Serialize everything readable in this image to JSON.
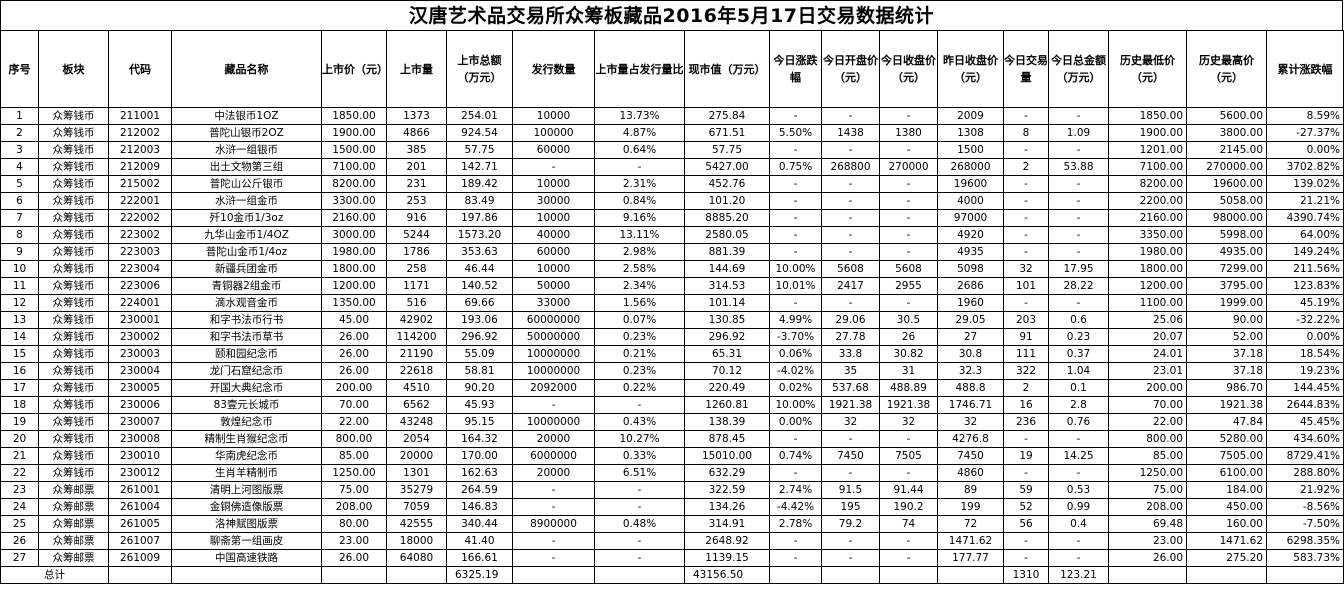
{
  "title": "汉唐艺术品交易所众筹板藏品2016年5月17日交易数据统计",
  "headers": [
    "序号",
    "板块",
    "代码",
    "藏品名称",
    "上市价（元）",
    "上市量",
    "上市总额（万元）",
    "发行数量",
    "上市量占发行量比",
    "现市值（万元）",
    "今日涨跌幅",
    "今日开盘价（元）",
    "今日收盘价（元）",
    "昨日收盘价（元）",
    "今日交易量",
    "今日总金额（万元）",
    "历史最低价（元）",
    "历史最高价（元）",
    "累计涨跌幅"
  ],
  "rows": [
    [
      "1",
      "众筹钱币",
      "211001",
      "中法银币1OZ",
      "1850.00",
      "1373",
      "254.01",
      "10000",
      "13.73%",
      "275.84",
      "-",
      "-",
      "-",
      "2009",
      "-",
      "-",
      "1850.00",
      "5600.00",
      "8.59%"
    ],
    [
      "2",
      "众筹钱币",
      "212002",
      "普陀山银币2OZ",
      "1900.00",
      "4866",
      "924.54",
      "100000",
      "4.87%",
      "671.51",
      "5.50%",
      "1438",
      "1380",
      "1308",
      "8",
      "1.09",
      "1900.00",
      "3800.00",
      "-27.37%"
    ],
    [
      "3",
      "众筹钱币",
      "212003",
      "水浒一组银币",
      "1500.00",
      "385",
      "57.75",
      "60000",
      "0.64%",
      "57.75",
      "-",
      "-",
      "-",
      "1500",
      "-",
      "-",
      "1201.00",
      "2145.00",
      "0.00%"
    ],
    [
      "4",
      "众筹钱币",
      "212009",
      "出土文物第三组",
      "7100.00",
      "201",
      "142.71",
      "-",
      "-",
      "5427.00",
      "0.75%",
      "268800",
      "270000",
      "268000",
      "2",
      "53.88",
      "7100.00",
      "270000.00",
      "3702.82%"
    ],
    [
      "5",
      "众筹钱币",
      "215002",
      "普陀山公斤银币",
      "8200.00",
      "231",
      "189.42",
      "10000",
      "2.31%",
      "452.76",
      "-",
      "-",
      "-",
      "19600",
      "-",
      "-",
      "8200.00",
      "19600.00",
      "139.02%"
    ],
    [
      "6",
      "众筹钱币",
      "222001",
      "水浒一组金币",
      "3300.00",
      "253",
      "83.49",
      "30000",
      "0.84%",
      "101.20",
      "-",
      "-",
      "-",
      "4000",
      "-",
      "-",
      "2200.00",
      "5058.00",
      "21.21%"
    ],
    [
      "7",
      "众筹钱币",
      "222002",
      "歼10金币1/3oz",
      "2160.00",
      "916",
      "197.86",
      "10000",
      "9.16%",
      "8885.20",
      "-",
      "-",
      "-",
      "97000",
      "-",
      "-",
      "2160.00",
      "98000.00",
      "4390.74%"
    ],
    [
      "8",
      "众筹钱币",
      "223002",
      "九华山金币1/4OZ",
      "3000.00",
      "5244",
      "1573.20",
      "40000",
      "13.11%",
      "2580.05",
      "-",
      "-",
      "-",
      "4920",
      "-",
      "-",
      "3350.00",
      "5998.00",
      "64.00%"
    ],
    [
      "9",
      "众筹钱币",
      "223003",
      "普陀山金币1/4oz",
      "1980.00",
      "1786",
      "353.63",
      "60000",
      "2.98%",
      "881.39",
      "-",
      "-",
      "-",
      "4935",
      "-",
      "-",
      "1980.00",
      "4935.00",
      "149.24%"
    ],
    [
      "10",
      "众筹钱币",
      "223004",
      "新疆兵团金币",
      "1800.00",
      "258",
      "46.44",
      "10000",
      "2.58%",
      "144.69",
      "10.00%",
      "5608",
      "5608",
      "5098",
      "32",
      "17.95",
      "1800.00",
      "7299.00",
      "211.56%"
    ],
    [
      "11",
      "众筹钱币",
      "223006",
      "青铜器2组金币",
      "1200.00",
      "1171",
      "140.52",
      "50000",
      "2.34%",
      "314.53",
      "10.01%",
      "2417",
      "2955",
      "2686",
      "101",
      "28.22",
      "1200.00",
      "3795.00",
      "123.83%"
    ],
    [
      "12",
      "众筹钱币",
      "224001",
      "滴水观音金币",
      "1350.00",
      "516",
      "69.66",
      "33000",
      "1.56%",
      "101.14",
      "-",
      "-",
      "-",
      "1960",
      "-",
      "-",
      "1100.00",
      "1999.00",
      "45.19%"
    ],
    [
      "13",
      "众筹钱币",
      "230001",
      "和字书法币行书",
      "45.00",
      "42902",
      "193.06",
      "60000000",
      "0.07%",
      "130.85",
      "4.99%",
      "29.06",
      "30.5",
      "29.05",
      "203",
      "0.6",
      "25.06",
      "90.00",
      "-32.22%"
    ],
    [
      "14",
      "众筹钱币",
      "230002",
      "和字书法币草书",
      "26.00",
      "114200",
      "296.92",
      "50000000",
      "0.23%",
      "296.92",
      "-3.70%",
      "27.78",
      "26",
      "27",
      "91",
      "0.23",
      "20.07",
      "52.00",
      "0.00%"
    ],
    [
      "15",
      "众筹钱币",
      "230003",
      "颐和园纪念币",
      "26.00",
      "21190",
      "55.09",
      "10000000",
      "0.21%",
      "65.31",
      "0.06%",
      "33.8",
      "30.82",
      "30.8",
      "111",
      "0.37",
      "24.01",
      "37.18",
      "18.54%"
    ],
    [
      "16",
      "众筹钱币",
      "230004",
      "龙门石窟纪念币",
      "26.00",
      "22618",
      "58.81",
      "10000000",
      "0.23%",
      "70.12",
      "-4.02%",
      "35",
      "31",
      "32.3",
      "322",
      "1.04",
      "23.01",
      "37.18",
      "19.23%"
    ],
    [
      "17",
      "众筹钱币",
      "230005",
      "开国大典纪念币",
      "200.00",
      "4510",
      "90.20",
      "2092000",
      "0.22%",
      "220.49",
      "0.02%",
      "537.68",
      "488.89",
      "488.8",
      "2",
      "0.1",
      "200.00",
      "986.70",
      "144.45%"
    ],
    [
      "18",
      "众筹钱币",
      "230006",
      "83壹元长城币",
      "70.00",
      "6562",
      "45.93",
      "-",
      "-",
      "1260.81",
      "10.00%",
      "1921.38",
      "1921.38",
      "1746.71",
      "16",
      "2.8",
      "70.00",
      "1921.38",
      "2644.83%"
    ],
    [
      "19",
      "众筹钱币",
      "230007",
      "敦煌纪念币",
      "22.00",
      "43248",
      "95.15",
      "10000000",
      "0.43%",
      "138.39",
      "0.00%",
      "32",
      "32",
      "32",
      "236",
      "0.76",
      "22.00",
      "47.84",
      "45.45%"
    ],
    [
      "20",
      "众筹钱币",
      "230008",
      "精制生肖猴纪念币",
      "800.00",
      "2054",
      "164.32",
      "20000",
      "10.27%",
      "878.45",
      "-",
      "-",
      "-",
      "4276.8",
      "-",
      "-",
      "800.00",
      "5280.00",
      "434.60%"
    ],
    [
      "21",
      "众筹钱币",
      "230010",
      "华南虎纪念币",
      "85.00",
      "20000",
      "170.00",
      "6000000",
      "0.33%",
      "15010.00",
      "0.74%",
      "7450",
      "7505",
      "7450",
      "19",
      "14.25",
      "85.00",
      "7505.00",
      "8729.41%"
    ],
    [
      "22",
      "众筹钱币",
      "230012",
      "生肖羊精制币",
      "1250.00",
      "1301",
      "162.63",
      "20000",
      "6.51%",
      "632.29",
      "-",
      "-",
      "-",
      "4860",
      "-",
      "-",
      "1250.00",
      "6100.00",
      "288.80%"
    ],
    [
      "23",
      "众筹邮票",
      "261001",
      "清明上河图版票",
      "75.00",
      "35279",
      "264.59",
      "-",
      "-",
      "322.59",
      "2.74%",
      "91.5",
      "91.44",
      "89",
      "59",
      "0.53",
      "75.00",
      "184.00",
      "21.92%"
    ],
    [
      "24",
      "众筹邮票",
      "261004",
      "金铜佛造像版票",
      "208.00",
      "7059",
      "146.83",
      "-",
      "-",
      "134.26",
      "-4.42%",
      "195",
      "190.2",
      "199",
      "52",
      "0.99",
      "208.00",
      "450.00",
      "-8.56%"
    ],
    [
      "25",
      "众筹邮票",
      "261005",
      "洛神赋图版票",
      "80.00",
      "42555",
      "340.44",
      "8900000",
      "0.48%",
      "314.91",
      "2.78%",
      "79.2",
      "74",
      "72",
      "56",
      "0.4",
      "69.48",
      "160.00",
      "-7.50%"
    ],
    [
      "26",
      "众筹邮票",
      "261007",
      "聊斋第一组画皮",
      "23.00",
      "18000",
      "41.40",
      "-",
      "-",
      "2648.92",
      "-",
      "-",
      "-",
      "1471.62",
      "-",
      "-",
      "23.00",
      "1471.62",
      "6298.35%"
    ],
    [
      "27",
      "众筹邮票",
      "261009",
      "中国高速铁路",
      "26.00",
      "64080",
      "166.61",
      "-",
      "-",
      "1139.15",
      "-",
      "-",
      "-",
      "177.77",
      "-",
      "-",
      "26.00",
      "275.20",
      "583.73%"
    ]
  ],
  "totals": {
    "label": "总计",
    "total_amount": "6325.19",
    "market_value": "43156.50",
    "volume": "1310",
    "turnover": "123.21"
  }
}
